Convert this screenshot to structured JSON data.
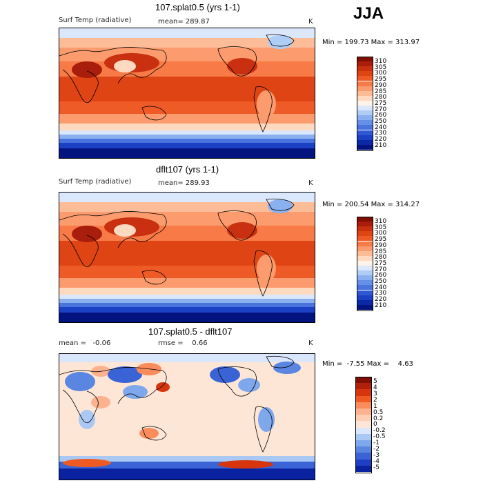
{
  "season": "JJA",
  "colors": {
    "warm": [
      "#7f0f04",
      "#a81d0c",
      "#c8300f",
      "#df4414",
      "#ef5b27",
      "#f77a47",
      "#fb9b6e",
      "#fdbc98",
      "#fdd9bf",
      "#fff2e6"
    ],
    "cold": [
      "#dbe8fb",
      "#b0cdf6",
      "#8ab0ef",
      "#6690e6",
      "#4a74dd",
      "#3058d3",
      "#1c40c3",
      "#0b28a6",
      "#031480"
    ],
    "diff_warm": [
      "#7f0f04",
      "#b3200a",
      "#d6350e",
      "#ef5a22",
      "#f98c5a",
      "#fcb18f",
      "#fdd0b6",
      "#fde6d6"
    ],
    "diff_cold": [
      "#d9e6fb",
      "#aac8f4",
      "#7fa8ec",
      "#5a86e2",
      "#3a63d6",
      "#1f40c4",
      "#0b22a0"
    ]
  },
  "panels": [
    {
      "title": "107.splat0.5 (yrs 1-1)",
      "variable": "Surf Temp (radiative)",
      "mean_text": "mean= 289.87",
      "unit": "K",
      "minmax": "Min = 199.73 Max = 313.97",
      "levels": [
        "310",
        "305",
        "300",
        "295",
        "290",
        "285",
        "280",
        "275",
        "270",
        "260",
        "250",
        "240",
        "230",
        "220",
        "210"
      ]
    },
    {
      "title": "dflt107 (yrs 1-1)",
      "variable": "Surf Temp (radiative)",
      "mean_text": "mean= 289.93",
      "unit": "K",
      "minmax": "Min = 200.54 Max = 314.27",
      "levels": [
        "310",
        "305",
        "300",
        "295",
        "290",
        "285",
        "280",
        "275",
        "270",
        "260",
        "250",
        "240",
        "230",
        "220",
        "210"
      ]
    },
    {
      "title": "107.splat0.5 - dflt107",
      "mean_text": "mean =   -0.06",
      "rmse_text": "rmse =    0.66",
      "unit": "K",
      "minmax": "Min =  -7.55 Max =    4.63",
      "levels": [
        "5",
        "4",
        "3",
        "2",
        "1",
        "0.5",
        "0.2",
        "0",
        "-0.2",
        "-0.5",
        "-1",
        "-2",
        "-3",
        "-4",
        "-5"
      ]
    }
  ]
}
